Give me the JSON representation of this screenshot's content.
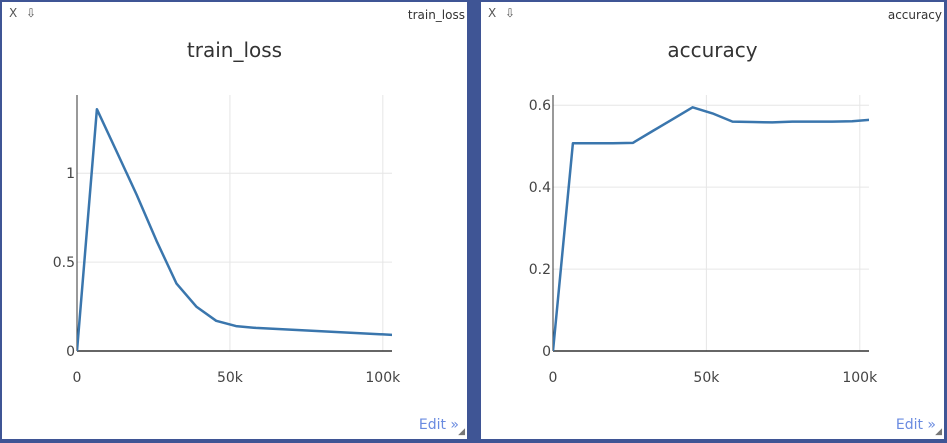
{
  "panels": [
    {
      "window_title": "train_loss",
      "close_label": "X",
      "download_label": "⇩",
      "edit_label": "Edit »",
      "resize_label": "◢"
    },
    {
      "window_title": "accuracy",
      "close_label": "X",
      "download_label": "⇩",
      "edit_label": "Edit »",
      "resize_label": "◢"
    }
  ],
  "chart_data": [
    {
      "type": "line",
      "title": "train_loss",
      "xlabel": "",
      "ylabel": "",
      "x_ticks": [
        {
          "value": 0,
          "label": "0"
        },
        {
          "value": 50000,
          "label": "50k"
        },
        {
          "value": 100000,
          "label": "100k"
        }
      ],
      "y_ticks": [
        {
          "value": 0,
          "label": "0"
        },
        {
          "value": 0.5,
          "label": "0.5"
        },
        {
          "value": 1,
          "label": "1"
        }
      ],
      "xlim": [
        0,
        103000
      ],
      "ylim": [
        0,
        1.44
      ],
      "grid": true,
      "color": "#3a76ad",
      "series": [
        {
          "x": [
            0,
            6500,
            13000,
            19500,
            26000,
            32500,
            39000,
            45500,
            52000,
            58500,
            104000
          ],
          "y": [
            0,
            1.36,
            1.12,
            0.88,
            0.62,
            0.38,
            0.25,
            0.17,
            0.14,
            0.13,
            0.09
          ]
        }
      ]
    },
    {
      "type": "line",
      "title": "accuracy",
      "xlabel": "",
      "ylabel": "",
      "x_ticks": [
        {
          "value": 0,
          "label": "0"
        },
        {
          "value": 50000,
          "label": "50k"
        },
        {
          "value": 100000,
          "label": "100k"
        }
      ],
      "y_ticks": [
        {
          "value": 0,
          "label": "0"
        },
        {
          "value": 0.2,
          "label": "0.2"
        },
        {
          "value": 0.4,
          "label": "0.4"
        },
        {
          "value": 0.6,
          "label": "0.6"
        }
      ],
      "xlim": [
        0,
        103000
      ],
      "ylim": [
        0,
        0.625
      ],
      "grid": true,
      "color": "#3a76ad",
      "series": [
        {
          "x": [
            0,
            6500,
            13000,
            19500,
            26000,
            32500,
            39000,
            45500,
            52000,
            58500,
            65000,
            71500,
            78000,
            84500,
            91000,
            97500,
            104000
          ],
          "y": [
            0,
            0.507,
            0.507,
            0.507,
            0.508,
            0.537,
            0.566,
            0.595,
            0.58,
            0.56,
            0.559,
            0.558,
            0.56,
            0.56,
            0.56,
            0.561,
            0.565
          ]
        }
      ]
    }
  ]
}
